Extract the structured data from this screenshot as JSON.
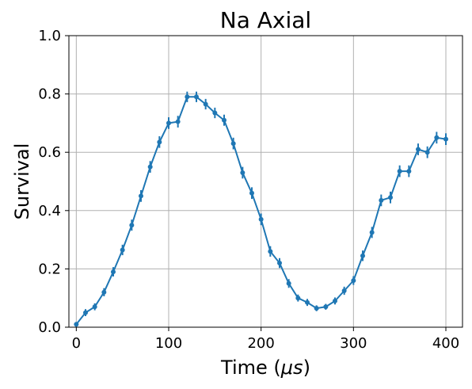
{
  "chart_data": {
    "type": "line",
    "title": "Na Axial",
    "xlabel_main": "Time (",
    "xlabel_symbol": "μs",
    "xlabel_end": ")",
    "ylabel": "Survival",
    "xlim": [
      -8,
      418
    ],
    "ylim": [
      0.0,
      1.0
    ],
    "xticks": [
      0,
      100,
      200,
      300,
      400
    ],
    "yticks": [
      0.0,
      0.2,
      0.4,
      0.6,
      0.8,
      1.0
    ],
    "xtick_labels": [
      "0",
      "100",
      "200",
      "300",
      "400"
    ],
    "ytick_labels": [
      "0.0",
      "0.2",
      "0.4",
      "0.6",
      "0.8",
      "1.0"
    ],
    "grid": true,
    "color": "#1f77b4",
    "series": [
      {
        "x": [
          0,
          10,
          20,
          30,
          40,
          50,
          60,
          70,
          80,
          90,
          100,
          110,
          120,
          130,
          140,
          150,
          160,
          170,
          180,
          190,
          200,
          210,
          220,
          230,
          240,
          250,
          260,
          270,
          280,
          290,
          300,
          310,
          320,
          330,
          340,
          350,
          360,
          370,
          380,
          390,
          400
        ],
        "y": [
          0.01,
          0.05,
          0.07,
          0.12,
          0.19,
          0.265,
          0.35,
          0.45,
          0.55,
          0.635,
          0.7,
          0.705,
          0.79,
          0.79,
          0.765,
          0.735,
          0.71,
          0.63,
          0.53,
          0.46,
          0.37,
          0.26,
          0.22,
          0.15,
          0.1,
          0.085,
          0.065,
          0.07,
          0.09,
          0.125,
          0.16,
          0.245,
          0.325,
          0.435,
          0.445,
          0.535,
          0.535,
          0.61,
          0.6,
          0.65,
          0.645
        ],
        "yerr": [
          0.008,
          0.012,
          0.012,
          0.014,
          0.016,
          0.018,
          0.019,
          0.02,
          0.02,
          0.02,
          0.02,
          0.02,
          0.018,
          0.018,
          0.018,
          0.018,
          0.019,
          0.02,
          0.02,
          0.02,
          0.02,
          0.018,
          0.017,
          0.015,
          0.012,
          0.012,
          0.01,
          0.01,
          0.012,
          0.014,
          0.015,
          0.018,
          0.019,
          0.02,
          0.02,
          0.02,
          0.02,
          0.02,
          0.02,
          0.02,
          0.02
        ]
      }
    ]
  }
}
